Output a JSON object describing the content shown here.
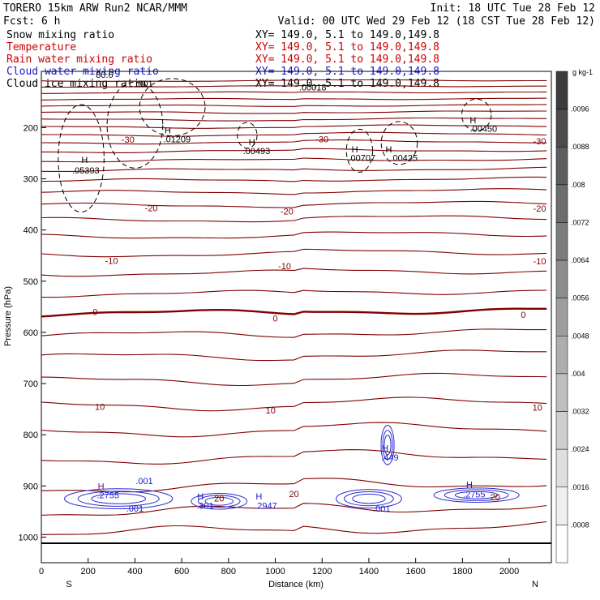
{
  "header": {
    "title_left": "TORERO  15km ARW   Run2    NCAR/MMM",
    "init": "Init: 18 UTC Tue 28 Feb 12",
    "fcst": "Fcst:    6 h",
    "valid": "Valid: 00 UTC Wed 29 Feb 12 (18 CST Tue 28 Feb 12)"
  },
  "fields": [
    {
      "label": "Snow mixing ratio",
      "xy": "XY= 149.0,  5.1 to 149.0,149.8",
      "color": "#000000"
    },
    {
      "label": "Temperature",
      "xy": "XY= 149.0,  5.1 to 149.0,149.8",
      "color": "#cc0000"
    },
    {
      "label": "Rain water mixing ratio",
      "xy": "XY= 149.0,  5.1 to 149.0,149.8",
      "color": "#cc0000"
    },
    {
      "label": "Cloud water mixing ratio",
      "xy": "XY= 149.0,  5.1 to 149.0,149.8",
      "color": "#1a1acc"
    },
    {
      "label": "Cloud ice mixing ratio",
      "xy": "XY= 149.0,  5.1 to 149.0,149.8",
      "color": "#000000"
    }
  ],
  "colors": {
    "temperature": "#800000",
    "cloud_water": "#2a2ad0",
    "rain": "#800080",
    "snow": "#000000",
    "axis": "#000000"
  },
  "chart_data": {
    "type": "contour cross-section",
    "xlabel": "Distance (km)",
    "ylabel": "Pressure (hPa)",
    "xlim": [
      0,
      2180
    ],
    "ylim": [
      1050,
      90
    ],
    "x_ticks": [
      0,
      200,
      400,
      600,
      800,
      1000,
      1200,
      1400,
      1600,
      1800,
      2000
    ],
    "y_ticks": [
      200,
      300,
      400,
      500,
      600,
      700,
      800,
      900,
      1000
    ],
    "x_end_labels": [
      "S",
      "N"
    ],
    "colorbar": {
      "unit": "g kg-1",
      "labels": [
        ".0096",
        ".0088",
        ".008",
        ".0072",
        ".0064",
        ".0056",
        ".0048",
        ".004",
        ".0032",
        ".0024",
        ".0016",
        ".0008"
      ]
    },
    "temperature_labels": [
      {
        "text": "-30",
        "x": 370,
        "p": 223
      },
      {
        "text": "-30",
        "x": 1200,
        "p": 222
      },
      {
        "text": "-30",
        "x": 2130,
        "p": 226
      },
      {
        "text": "-20",
        "x": 470,
        "p": 357
      },
      {
        "text": "-20",
        "x": 1050,
        "p": 363
      },
      {
        "text": "-20",
        "x": 2130,
        "p": 358
      },
      {
        "text": "-10",
        "x": 300,
        "p": 460
      },
      {
        "text": "-10",
        "x": 1040,
        "p": 470
      },
      {
        "text": "-10",
        "x": 2130,
        "p": 461
      },
      {
        "text": "0",
        "x": 230,
        "p": 560
      },
      {
        "text": "0",
        "x": 1000,
        "p": 572
      },
      {
        "text": "0",
        "x": 2060,
        "p": 565
      },
      {
        "text": "10",
        "x": 250,
        "p": 745
      },
      {
        "text": "10",
        "x": 980,
        "p": 752
      },
      {
        "text": "10",
        "x": 2120,
        "p": 747
      },
      {
        "text": "20",
        "x": 1080,
        "p": 915
      },
      {
        "text": "20",
        "x": 1940,
        "p": 922
      },
      {
        "text": "20",
        "x": 760,
        "p": 924
      }
    ],
    "extrema": [
      {
        "text": "H",
        "x": 185,
        "p": 263,
        "color": "#000000"
      },
      {
        "text": ".05393",
        "x": 190,
        "p": 283,
        "color": "#000000"
      },
      {
        "text": "H",
        "x": 540,
        "p": 205,
        "color": "#000000"
      },
      {
        "text": ".01209",
        "x": 580,
        "p": 222,
        "color": "#000000"
      },
      {
        "text": ".001",
        "x": 440,
        "p": 114,
        "color": "#000000"
      },
      {
        "text": "H",
        "x": 900,
        "p": 228,
        "color": "#000000"
      },
      {
        "text": ".00493",
        "x": 920,
        "p": 245,
        "color": "#000000"
      },
      {
        "text": "H",
        "x": 1340,
        "p": 242,
        "color": "#000000"
      },
      {
        "text": ".00707",
        "x": 1370,
        "p": 259,
        "color": "#000000"
      },
      {
        "text": "H",
        "x": 1485,
        "p": 242,
        "color": "#000000"
      },
      {
        "text": ".00425",
        "x": 1550,
        "p": 259,
        "color": "#000000"
      },
      {
        "text": "H",
        "x": 1845,
        "p": 185,
        "color": "#000000"
      },
      {
        "text": ".00450",
        "x": 1890,
        "p": 202,
        "color": "#000000"
      },
      {
        "text": ".00018",
        "x": 1160,
        "p": 121,
        "color": "#000000"
      },
      {
        "text": "80.6",
        "x": 270,
        "p": 96,
        "color": "#000000"
      },
      {
        "text": "H",
        "x": 255,
        "p": 900,
        "color": "#800080"
      },
      {
        "text": ".2755",
        "x": 285,
        "p": 918,
        "color": "#1a1acc"
      },
      {
        "text": ".001",
        "x": 440,
        "p": 890,
        "color": "#1a1acc"
      },
      {
        "text": ".001",
        "x": 400,
        "p": 944,
        "color": "#1a1acc"
      },
      {
        "text": "H",
        "x": 680,
        "p": 920,
        "color": "#1a1acc"
      },
      {
        "text": ".301",
        "x": 700,
        "p": 938,
        "color": "#1a1acc"
      },
      {
        "text": "H",
        "x": 930,
        "p": 920,
        "color": "#1a1acc"
      },
      {
        "text": ".2947",
        "x": 960,
        "p": 938,
        "color": "#1a1acc"
      },
      {
        "text": "H",
        "x": 1470,
        "p": 826,
        "color": "#1a1acc"
      },
      {
        "text": ".449",
        "x": 1490,
        "p": 844,
        "color": "#1a1acc"
      },
      {
        "text": ".001",
        "x": 1455,
        "p": 944,
        "color": "#1a1acc"
      },
      {
        "text": "H",
        "x": 1830,
        "p": 897,
        "color": "#1a1acc"
      },
      {
        "text": ".2755",
        "x": 1850,
        "p": 916,
        "color": "#1a1acc"
      }
    ]
  }
}
